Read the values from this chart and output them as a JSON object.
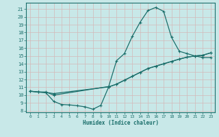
{
  "background_color": "#c8e8e8",
  "grid_color": "#b8d8d8",
  "line_color": "#1a6e6a",
  "xlabel": "Humidex (Indice chaleur)",
  "xlim": [
    -0.5,
    23.5
  ],
  "ylim": [
    7.8,
    21.8
  ],
  "yticks": [
    8,
    9,
    10,
    11,
    12,
    13,
    14,
    15,
    16,
    17,
    18,
    19,
    20,
    21
  ],
  "xticks": [
    0,
    1,
    2,
    3,
    4,
    5,
    6,
    7,
    8,
    9,
    10,
    11,
    12,
    13,
    14,
    15,
    16,
    17,
    18,
    19,
    20,
    21,
    22,
    23
  ],
  "line1_x": [
    0,
    1,
    2,
    3,
    10,
    11,
    12,
    13,
    14,
    15,
    16,
    17,
    18,
    19,
    20,
    21,
    22,
    23
  ],
  "line1_y": [
    10.5,
    10.4,
    10.4,
    10.0,
    11.1,
    14.4,
    15.3,
    17.5,
    19.3,
    20.8,
    21.2,
    20.7,
    17.4,
    15.6,
    15.3,
    15.0,
    14.8,
    14.8
  ],
  "line2_x": [
    0,
    1,
    2,
    3,
    10,
    11,
    12,
    13,
    14,
    15,
    16,
    17,
    18,
    19,
    20,
    21,
    22,
    23
  ],
  "line2_y": [
    10.5,
    10.4,
    10.35,
    10.2,
    11.05,
    11.4,
    11.9,
    12.4,
    12.9,
    13.4,
    13.7,
    14.0,
    14.3,
    14.6,
    14.85,
    15.0,
    15.1,
    15.4
  ],
  "line3_x": [
    0,
    1,
    2,
    3,
    4,
    5,
    6,
    7,
    8,
    9,
    10,
    11,
    12,
    13,
    14,
    15,
    16,
    17,
    18,
    19,
    20,
    21,
    22,
    23
  ],
  "line3_y": [
    10.5,
    10.4,
    10.3,
    9.2,
    8.8,
    8.75,
    8.65,
    8.5,
    8.2,
    8.7,
    11.05,
    11.4,
    11.9,
    12.4,
    12.9,
    13.4,
    13.7,
    14.0,
    14.3,
    14.6,
    14.85,
    15.0,
    15.1,
    15.4
  ]
}
